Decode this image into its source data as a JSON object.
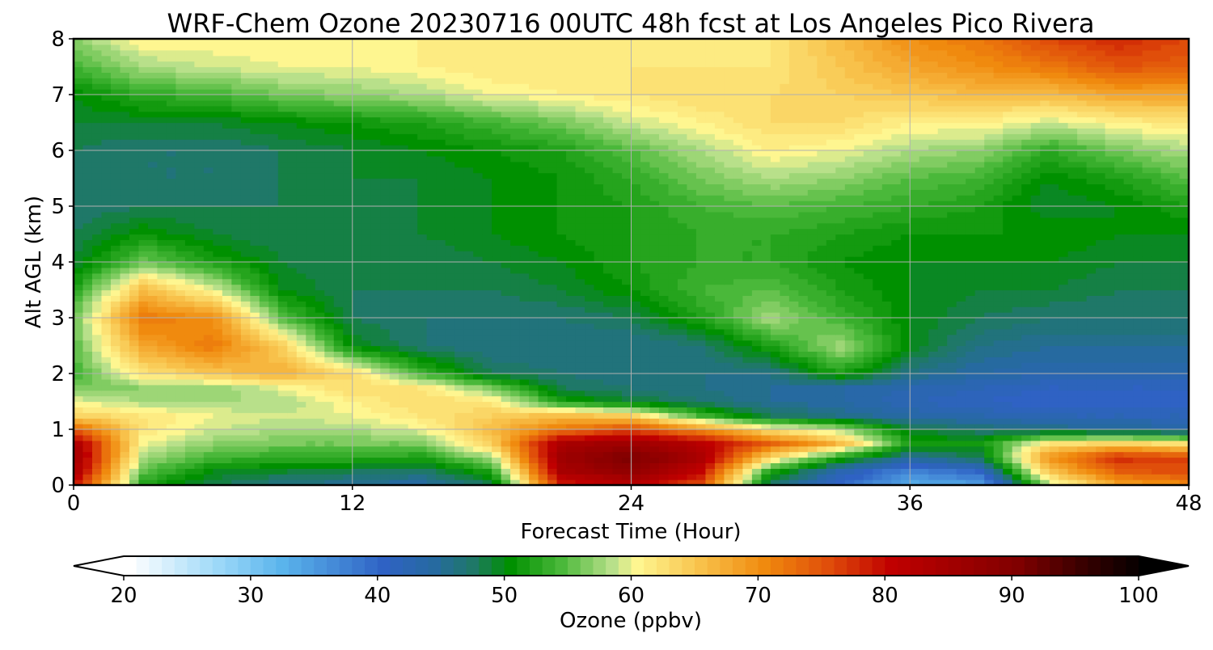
{
  "chart_data": {
    "type": "heatmap",
    "title": "WRF-Chem Ozone  20230716 00UTC 48h fcst at Los Angeles Pico Rivera",
    "xlabel": "Forecast Time (Hour)",
    "ylabel": "Alt AGL (km)",
    "xlim": [
      0,
      48
    ],
    "ylim": [
      0,
      8
    ],
    "x_ticks": [
      0,
      12,
      24,
      36,
      48
    ],
    "y_ticks": [
      0,
      1,
      2,
      3,
      4,
      5,
      6,
      7,
      8
    ],
    "grid": true,
    "colorbar": {
      "label": "Ozone  (ppbv)",
      "min": 20,
      "max": 100,
      "step": 1,
      "ticks": [
        20,
        30,
        40,
        50,
        60,
        70,
        80,
        90,
        100
      ],
      "extend": "both",
      "orientation": "horizontal",
      "position": "bottom"
    },
    "z_units": "ppbv",
    "x": [
      0,
      3,
      6,
      9,
      12,
      15,
      18,
      21,
      24,
      27,
      30,
      33,
      36,
      39,
      42,
      45,
      48
    ],
    "y": [
      0,
      0.25,
      0.5,
      0.75,
      1,
      1.25,
      1.5,
      1.75,
      2,
      2.5,
      3,
      3.5,
      4,
      4.5,
      5,
      5.5,
      6,
      6.5,
      7,
      7.5,
      8
    ],
    "z": [
      [
        80,
        52,
        48,
        46,
        45,
        44,
        48,
        78,
        82,
        75,
        47,
        40,
        33,
        34,
        58,
        68,
        70
      ],
      [
        84,
        55,
        50,
        49,
        48,
        47,
        52,
        84,
        88,
        80,
        52,
        43,
        37,
        40,
        65,
        74,
        76
      ],
      [
        86,
        58,
        54,
        53,
        53,
        52,
        58,
        86,
        91,
        84,
        63,
        52,
        45,
        48,
        70,
        78,
        76
      ],
      [
        84,
        60,
        57,
        56,
        56,
        56,
        64,
        84,
        86,
        82,
        74,
        66,
        52,
        51,
        62,
        64,
        62
      ],
      [
        74,
        62,
        59,
        58,
        58,
        60,
        66,
        72,
        76,
        70,
        62,
        58,
        49,
        47,
        46,
        45,
        44
      ],
      [
        64,
        62,
        60,
        59,
        60,
        62,
        64,
        66,
        64,
        54,
        48,
        46,
        44,
        43,
        42,
        42,
        42
      ],
      [
        60,
        58,
        58,
        58,
        61,
        63,
        62,
        52,
        49,
        47,
        45,
        44,
        42,
        41,
        40,
        40,
        40
      ],
      [
        56,
        57,
        57,
        60,
        63,
        62,
        56,
        48,
        47,
        46,
        45,
        44,
        43,
        42,
        41,
        41,
        41
      ],
      [
        54,
        62,
        65,
        67,
        63,
        54,
        48,
        47,
        46,
        46,
        46,
        52,
        46,
        44,
        43,
        43,
        43
      ],
      [
        55,
        68,
        72,
        64,
        50,
        47,
        46,
        46,
        46,
        47,
        52,
        58,
        50,
        46,
        45,
        45,
        45
      ],
      [
        56,
        72,
        70,
        55,
        48,
        47,
        47,
        47,
        48,
        52,
        58,
        54,
        50,
        48,
        47,
        47,
        47
      ],
      [
        52,
        66,
        60,
        50,
        48,
        48,
        48,
        49,
        51,
        54,
        55,
        52,
        50,
        49,
        49,
        48,
        48
      ],
      [
        49,
        56,
        52,
        49,
        48,
        48,
        49,
        50,
        52,
        53,
        53,
        51,
        50,
        50,
        50,
        49,
        49
      ],
      [
        48,
        51,
        49,
        48,
        48,
        49,
        50,
        51,
        52,
        53,
        53,
        52,
        51,
        51,
        51,
        50,
        50
      ],
      [
        47,
        48,
        48,
        48,
        48,
        49,
        50,
        51,
        52,
        54,
        55,
        54,
        53,
        52,
        49,
        50,
        52
      ],
      [
        47,
        47,
        47,
        48,
        49,
        49,
        50,
        51,
        53,
        56,
        58,
        57,
        55,
        54,
        50,
        52,
        55
      ],
      [
        48,
        47,
        47,
        48,
        49,
        50,
        51,
        52,
        55,
        58,
        61,
        60,
        58,
        57,
        53,
        56,
        58
      ],
      [
        49,
        49,
        49,
        50,
        51,
        52,
        54,
        56,
        59,
        61,
        63,
        63,
        61,
        61,
        59,
        61,
        62
      ],
      [
        50,
        53,
        54,
        56,
        57,
        58,
        60,
        61,
        62,
        63,
        63,
        64,
        65,
        66,
        66,
        68,
        68
      ],
      [
        54,
        58,
        59,
        60,
        60,
        61,
        62,
        62,
        62,
        62,
        62,
        65,
        68,
        70,
        72,
        75,
        74
      ],
      [
        57,
        61,
        61,
        61,
        61,
        61,
        62,
        61,
        61,
        61,
        62,
        66,
        70,
        72,
        76,
        78,
        76
      ]
    ]
  },
  "colors": {
    "stops": [
      [
        20,
        "#ffffff"
      ],
      [
        27,
        "#9cd8f8"
      ],
      [
        32,
        "#5ab4ec"
      ],
      [
        40,
        "#2f62c4"
      ],
      [
        44,
        "#266aa0"
      ],
      [
        47,
        "#1f7868"
      ],
      [
        50,
        "#009000"
      ],
      [
        54,
        "#4ab83a"
      ],
      [
        58,
        "#b8e08a"
      ],
      [
        60,
        "#fef690"
      ],
      [
        65,
        "#f8c14a"
      ],
      [
        70,
        "#f08a0e"
      ],
      [
        75,
        "#e04e0a"
      ],
      [
        80,
        "#c00000"
      ],
      [
        90,
        "#800000"
      ],
      [
        95,
        "#3a0000"
      ],
      [
        100,
        "#000000"
      ]
    ],
    "grid": "#b0b0b0",
    "axis": "#000000"
  }
}
